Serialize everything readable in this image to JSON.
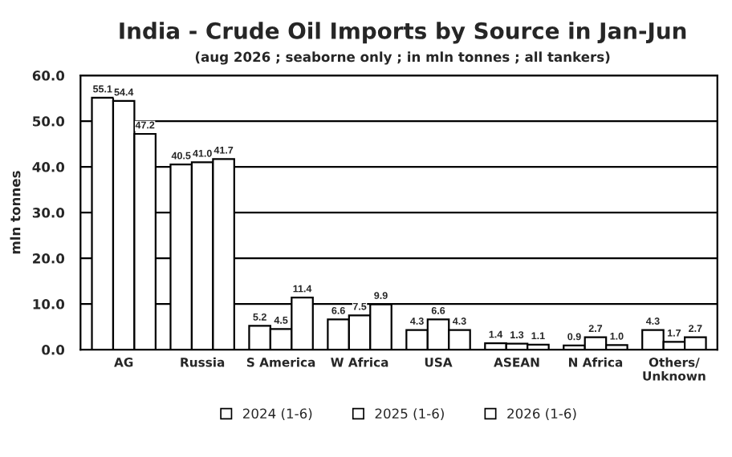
{
  "chart_data": {
    "type": "bar",
    "title": "India - Crude Oil Imports by Source in Jan-Jun",
    "subtitle": "(aug 2026 ; seaborne only ; in mln tonnes ; all tankers)",
    "ylabel": "mln tonnes",
    "categories": [
      "AG",
      "Russia",
      "S America",
      "W Africa",
      "USA",
      "ASEAN",
      "N Africa",
      "Others/\nUnknown"
    ],
    "series": [
      {
        "name": "2024 (1-6)",
        "color": "#ffffff",
        "values": [
          55.1,
          40.5,
          5.2,
          6.6,
          4.3,
          1.4,
          0.9,
          4.3
        ],
        "value_labels": [
          "55.1",
          "40.5",
          "5.2",
          "6.6",
          "4.3",
          "1.4",
          "0.9",
          "4.3"
        ]
      },
      {
        "name": "2025 (1-6)",
        "color": "#ffffff",
        "values": [
          54.4,
          41.0,
          4.5,
          7.5,
          6.6,
          1.3,
          2.7,
          1.7
        ],
        "value_labels": [
          "54.4",
          "41.0",
          "4.5",
          "7.5",
          "6.6",
          "1.3",
          "2.7",
          "1.7"
        ]
      },
      {
        "name": "2026 (1-6)",
        "color": "#ffffff",
        "values": [
          47.2,
          41.7,
          11.4,
          9.9,
          4.3,
          1.1,
          1.0,
          2.7
        ],
        "value_labels": [
          "47.2",
          "41.7",
          "11.4",
          "9.9",
          "4.3",
          "1.1",
          "1.0",
          "2.7"
        ]
      }
    ],
    "ylim": [
      0,
      60
    ],
    "yticks": [
      {
        "value": 0,
        "label": "0.0"
      },
      {
        "value": 10,
        "label": "10.0"
      },
      {
        "value": 20,
        "label": "20.0"
      },
      {
        "value": 30,
        "label": "30.0"
      },
      {
        "value": 40,
        "label": "40.0"
      },
      {
        "value": 50,
        "label": "50.0"
      },
      {
        "value": 60,
        "label": "60.0"
      }
    ],
    "grid": "y",
    "legend": "bottom"
  }
}
